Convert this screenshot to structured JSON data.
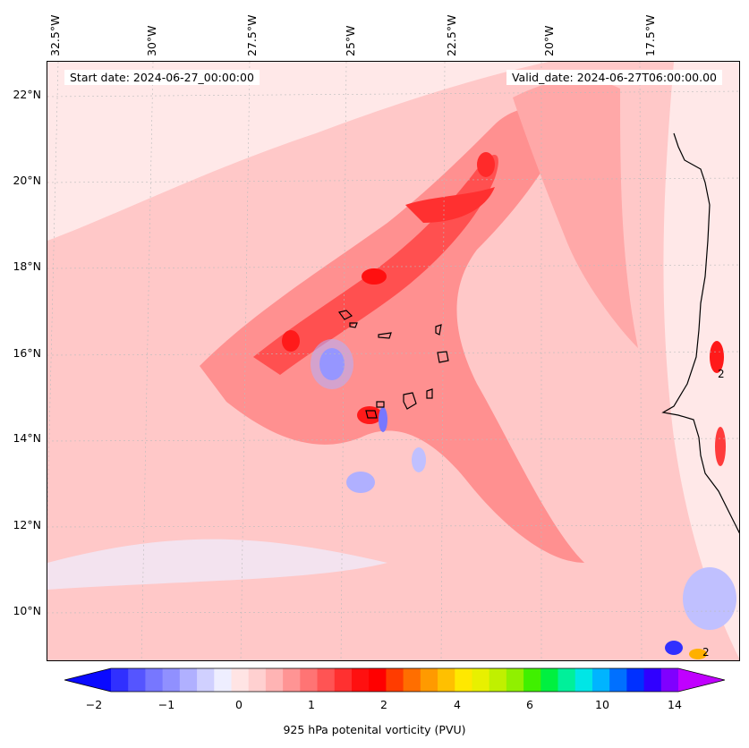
{
  "map": {
    "start_date": "Start date: 2024-06-27_00:00:00",
    "valid_date": "Valid_date: 2024-06-27T06:00:00.00",
    "lon_labels": [
      "32.5°W",
      "30°W",
      "27.5°W",
      "25°W",
      "22.5°W",
      "20°W",
      "17.5°W"
    ],
    "lat_labels": [
      "22°N",
      "20°N",
      "18°N",
      "16°N",
      "14°N",
      "12°N",
      "10°N"
    ],
    "contour_labels": [
      "2",
      "2"
    ],
    "colors": {
      "light_pink": "#ffe4e4",
      "pink": "#ffc8c8",
      "mid_red": "#ff9090",
      "red": "#ff5050",
      "deep_red": "#ff1a1a",
      "light_blue": "#e6e8ff",
      "blue": "#b0b0ff"
    }
  },
  "colorbar": {
    "title": "925 hPa potenital vorticity (PVU)",
    "tick_labels": [
      "−2",
      "−1",
      "0",
      "1",
      "2",
      "4",
      "6",
      "10",
      "14"
    ],
    "colors": [
      "#0a0aff",
      "#3030ff",
      "#5555ff",
      "#7777ff",
      "#9090ff",
      "#b0b0ff",
      "#d0d0ff",
      "#eeeeff",
      "#ffe4e4",
      "#ffd0d0",
      "#ffb4b4",
      "#ff9494",
      "#ff7474",
      "#ff5454",
      "#ff3030",
      "#ff1010",
      "#ff0000",
      "#ff3c00",
      "#ff6e00",
      "#ff9a00",
      "#ffc000",
      "#ffe800",
      "#e8f000",
      "#c0f000",
      "#90f000",
      "#40f000",
      "#00f040",
      "#00f09a",
      "#00e6e6",
      "#00b4ff",
      "#0070ff",
      "#0030ff",
      "#3000ff",
      "#8000ff",
      "#c000ff"
    ]
  }
}
